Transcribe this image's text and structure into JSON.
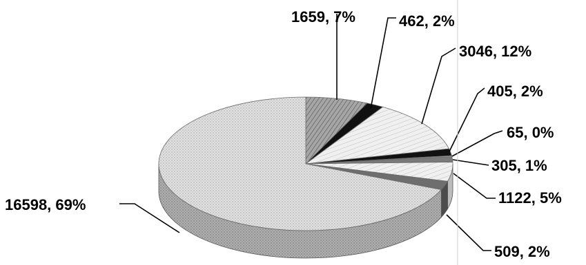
{
  "chart_data": {
    "type": "pie",
    "title": "",
    "slices": [
      {
        "value": 1659,
        "percent": "7%",
        "label": "1659, 7%",
        "color": "#8c8c8c"
      },
      {
        "value": 462,
        "percent": "2%",
        "label": "462, 2%",
        "color": "#111111"
      },
      {
        "value": 3046,
        "percent": "12%",
        "label": "3046, 12%",
        "color": "#e9e9e9"
      },
      {
        "value": 405,
        "percent": "2%",
        "label": "405, 2%",
        "color": "#111111"
      },
      {
        "value": 65,
        "percent": "0%",
        "label": "65, 0%",
        "color": "#9a9a9a"
      },
      {
        "value": 305,
        "percent": "1%",
        "label": "305, 1%",
        "color": "#7a7a7a"
      },
      {
        "value": 1122,
        "percent": "5%",
        "label": "1122, 5%",
        "color": "#dcdcdc"
      },
      {
        "value": 509,
        "percent": "2%",
        "label": "509, 2%",
        "color": "#6e6e6e"
      },
      {
        "value": 16598,
        "percent": "69%",
        "label": "16598, 69%",
        "color": "#dedede"
      }
    ],
    "legend": "none",
    "style": "3d-pie"
  }
}
